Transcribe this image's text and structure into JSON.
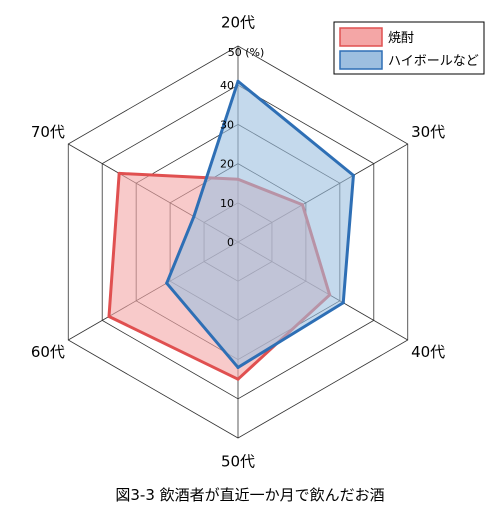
{
  "chart_data": {
    "type": "radar",
    "title": "図3-3 飲酒者が直近一か月で飲んだお酒",
    "categories": [
      "20代",
      "30代",
      "40代",
      "50代",
      "60代",
      "70代"
    ],
    "tick_values": [
      0,
      10,
      20,
      30,
      40,
      50
    ],
    "tick_labels": [
      "0",
      "10",
      "20",
      "30",
      "40",
      "50 (%)"
    ],
    "range": [
      0,
      50
    ],
    "grid": true,
    "legend_position": "top-right",
    "series": [
      {
        "name": "焼酎",
        "values": [
          16,
          19,
          27,
          35,
          38,
          35
        ],
        "fill": "#f4a6a6",
        "stroke": "#e05050"
      },
      {
        "name": "ハイボールなど",
        "values": [
          41,
          34,
          31,
          32,
          21,
          13
        ],
        "fill": "#9dbfe0",
        "stroke": "#2e6fb5"
      }
    ]
  }
}
